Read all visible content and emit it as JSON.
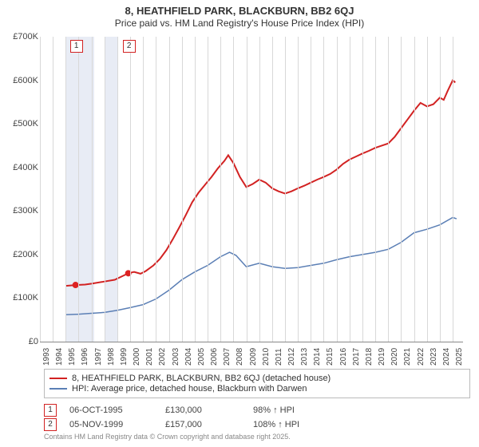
{
  "title": "8, HEATHFIELD PARK, BLACKBURN, BB2 6QJ",
  "subtitle": "Price paid vs. HM Land Registry's House Price Index (HPI)",
  "colors": {
    "series_property": "#d22222",
    "series_hpi": "#5b7fb5",
    "axis_text": "#444444",
    "highlight_band": "#e8ecf5",
    "grid": "#d8d8d8",
    "marker_border": "#d22222",
    "background": "#ffffff",
    "footer_text": "#888888"
  },
  "chart": {
    "type": "line",
    "xlim": [
      1993,
      2025.8
    ],
    "ylim": [
      0,
      700000
    ],
    "ytick_step": 100000,
    "ytick_labels": [
      "£0",
      "£100K",
      "£200K",
      "£300K",
      "£400K",
      "£500K",
      "£600K",
      "£700K"
    ],
    "xtick_years": [
      1993,
      1994,
      1995,
      1996,
      1997,
      1998,
      1999,
      2000,
      2001,
      2002,
      2003,
      2004,
      2005,
      2006,
      2007,
      2008,
      2009,
      2010,
      2011,
      2012,
      2013,
      2014,
      2015,
      2016,
      2017,
      2018,
      2019,
      2020,
      2021,
      2022,
      2023,
      2024,
      2025
    ],
    "highlight_bands": [
      {
        "from": 1995.0,
        "to": 1997.2
      },
      {
        "from": 1998.1,
        "to": 1999.0
      }
    ],
    "markers_top": [
      {
        "label": "1",
        "x": 1995.76
      },
      {
        "label": "2",
        "x": 1999.85
      }
    ],
    "sale_points": [
      {
        "x": 1995.76,
        "y": 130000
      },
      {
        "x": 1999.85,
        "y": 157000
      }
    ],
    "series": [
      {
        "name": "property",
        "label": "8, HEATHFIELD PARK, BLACKBURN, BB2 6QJ (detached house)",
        "color": "#d22222",
        "line_width": 2,
        "points": [
          [
            1995.0,
            128000
          ],
          [
            1995.76,
            130000
          ],
          [
            1996.5,
            131000
          ],
          [
            1997,
            133000
          ],
          [
            1998,
            138000
          ],
          [
            1998.8,
            142000
          ],
          [
            1999.5,
            152000
          ],
          [
            1999.85,
            157000
          ],
          [
            2000.3,
            160000
          ],
          [
            2000.8,
            156000
          ],
          [
            2001.2,
            162000
          ],
          [
            2001.8,
            175000
          ],
          [
            2002.3,
            190000
          ],
          [
            2002.8,
            210000
          ],
          [
            2003.3,
            235000
          ],
          [
            2003.8,
            262000
          ],
          [
            2004.3,
            290000
          ],
          [
            2004.8,
            320000
          ],
          [
            2005.3,
            342000
          ],
          [
            2005.8,
            360000
          ],
          [
            2006.3,
            378000
          ],
          [
            2006.8,
            398000
          ],
          [
            2007.3,
            415000
          ],
          [
            2007.6,
            428000
          ],
          [
            2008.0,
            410000
          ],
          [
            2008.5,
            378000
          ],
          [
            2009.0,
            355000
          ],
          [
            2009.5,
            362000
          ],
          [
            2010.0,
            372000
          ],
          [
            2010.5,
            365000
          ],
          [
            2011.0,
            352000
          ],
          [
            2011.5,
            345000
          ],
          [
            2012.0,
            340000
          ],
          [
            2012.5,
            345000
          ],
          [
            2013.0,
            352000
          ],
          [
            2013.5,
            358000
          ],
          [
            2014.0,
            365000
          ],
          [
            2014.5,
            372000
          ],
          [
            2015.0,
            378000
          ],
          [
            2015.5,
            385000
          ],
          [
            2016.0,
            395000
          ],
          [
            2016.5,
            408000
          ],
          [
            2017.0,
            418000
          ],
          [
            2017.5,
            425000
          ],
          [
            2018.0,
            432000
          ],
          [
            2018.5,
            438000
          ],
          [
            2019.0,
            445000
          ],
          [
            2019.5,
            450000
          ],
          [
            2020.0,
            455000
          ],
          [
            2020.5,
            470000
          ],
          [
            2021.0,
            490000
          ],
          [
            2021.5,
            510000
          ],
          [
            2022.0,
            530000
          ],
          [
            2022.5,
            548000
          ],
          [
            2023.0,
            540000
          ],
          [
            2023.5,
            545000
          ],
          [
            2024.0,
            560000
          ],
          [
            2024.3,
            555000
          ],
          [
            2024.6,
            575000
          ],
          [
            2025.0,
            600000
          ],
          [
            2025.2,
            595000
          ]
        ]
      },
      {
        "name": "hpi",
        "label": "HPI: Average price, detached house, Blackburn with Darwen",
        "color": "#5b7fb5",
        "line_width": 1.5,
        "points": [
          [
            1995.0,
            62000
          ],
          [
            1996,
            63000
          ],
          [
            1997,
            65000
          ],
          [
            1998,
            67000
          ],
          [
            1999,
            72000
          ],
          [
            2000,
            78000
          ],
          [
            2001,
            85000
          ],
          [
            2002,
            98000
          ],
          [
            2003,
            118000
          ],
          [
            2004,
            142000
          ],
          [
            2005,
            160000
          ],
          [
            2006,
            175000
          ],
          [
            2007,
            195000
          ],
          [
            2007.7,
            205000
          ],
          [
            2008.2,
            198000
          ],
          [
            2009,
            172000
          ],
          [
            2010,
            180000
          ],
          [
            2011,
            172000
          ],
          [
            2012,
            168000
          ],
          [
            2013,
            170000
          ],
          [
            2014,
            175000
          ],
          [
            2015,
            180000
          ],
          [
            2016,
            188000
          ],
          [
            2017,
            195000
          ],
          [
            2018,
            200000
          ],
          [
            2019,
            205000
          ],
          [
            2020,
            212000
          ],
          [
            2021,
            228000
          ],
          [
            2022,
            250000
          ],
          [
            2023,
            258000
          ],
          [
            2024,
            268000
          ],
          [
            2025,
            285000
          ],
          [
            2025.3,
            282000
          ]
        ]
      }
    ]
  },
  "legend": {
    "items": [
      {
        "color": "#d22222",
        "label": "8, HEATHFIELD PARK, BLACKBURN, BB2 6QJ (detached house)"
      },
      {
        "color": "#5b7fb5",
        "label": "HPI: Average price, detached house, Blackburn with Darwen"
      }
    ]
  },
  "transactions": [
    {
      "idx": "1",
      "date": "06-OCT-1995",
      "price": "£130,000",
      "pct": "98% ↑ HPI"
    },
    {
      "idx": "2",
      "date": "05-NOV-1999",
      "price": "£157,000",
      "pct": "108% ↑ HPI"
    }
  ],
  "footer_line1": "Contains HM Land Registry data © Crown copyright and database right 2025.",
  "footer_line2": "This data is licensed under the Open Government Licence v3.0."
}
